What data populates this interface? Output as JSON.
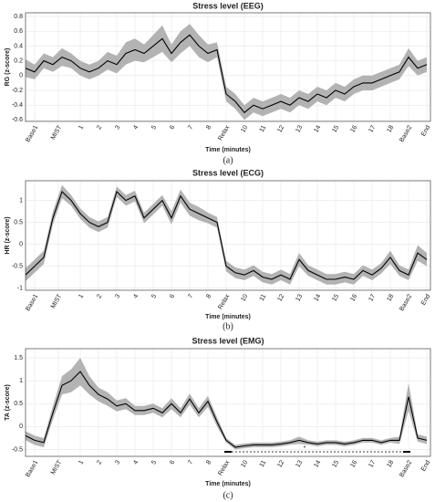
{
  "chart_data": [
    {
      "type": "line",
      "title": "Stress level (EEG)",
      "ylabel": "RG (z-score)",
      "xlabel": "Time (minutes)",
      "caption": "(a)",
      "xlim": [
        0,
        22.2
      ],
      "xticks": [
        {
          "value": 0.5,
          "label": "Base1"
        },
        {
          "value": 1.8,
          "label": "MIST"
        },
        {
          "value": 3,
          "label": "1"
        },
        {
          "value": 4,
          "label": "2"
        },
        {
          "value": 5,
          "label": "3"
        },
        {
          "value": 6,
          "label": "4"
        },
        {
          "value": 7,
          "label": "5"
        },
        {
          "value": 8,
          "label": "6"
        },
        {
          "value": 9,
          "label": "7"
        },
        {
          "value": 10,
          "label": "8"
        },
        {
          "value": 11,
          "label": "Relax"
        },
        {
          "value": 12,
          "label": "10"
        },
        {
          "value": 13,
          "label": "11"
        },
        {
          "value": 14,
          "label": "12"
        },
        {
          "value": 15,
          "label": "13"
        },
        {
          "value": 16,
          "label": "14"
        },
        {
          "value": 17,
          "label": "15"
        },
        {
          "value": 18,
          "label": "16"
        },
        {
          "value": 19,
          "label": "17"
        },
        {
          "value": 20,
          "label": "18"
        },
        {
          "value": 21,
          "label": "Base2"
        },
        {
          "value": 22,
          "label": "End"
        }
      ],
      "ylim": [
        -0.62,
        0.85
      ],
      "yticks": [
        -0.6,
        -0.4,
        -0.2,
        0,
        0.2,
        0.4,
        0.6,
        0.8
      ],
      "grid": true,
      "x": [
        0,
        0.5,
        1,
        1.5,
        2,
        2.5,
        3,
        3.5,
        4,
        4.5,
        5,
        5.5,
        6,
        6.5,
        7,
        7.5,
        8,
        8.5,
        9,
        9.5,
        10,
        10.5,
        11,
        11.5,
        12,
        12.5,
        13,
        13.5,
        14,
        14.5,
        15,
        15.5,
        16,
        16.5,
        17,
        17.5,
        18,
        18.5,
        19,
        19.5,
        20,
        20.5,
        21,
        21.5,
        22
      ],
      "series": [
        {
          "color": "#000000",
          "band_color": "#b3b3b3",
          "values": [
            0.1,
            0.05,
            0.2,
            0.15,
            0.25,
            0.2,
            0.1,
            0.05,
            0.1,
            0.2,
            0.15,
            0.3,
            0.35,
            0.3,
            0.4,
            0.5,
            0.3,
            0.45,
            0.55,
            0.4,
            0.3,
            0.35,
            -0.25,
            -0.35,
            -0.5,
            -0.4,
            -0.45,
            -0.4,
            -0.35,
            -0.4,
            -0.3,
            -0.35,
            -0.25,
            -0.3,
            -0.2,
            -0.25,
            -0.15,
            -0.1,
            -0.1,
            -0.05,
            0,
            0.05,
            0.25,
            0.1,
            0.15
          ],
          "err": [
            0.12,
            0.1,
            0.1,
            0.1,
            0.12,
            0.1,
            0.1,
            0.1,
            0.1,
            0.12,
            0.12,
            0.15,
            0.15,
            0.12,
            0.15,
            0.18,
            0.12,
            0.15,
            0.15,
            0.15,
            0.12,
            0.1,
            0.1,
            0.1,
            0.1,
            0.1,
            0.1,
            0.1,
            0.1,
            0.1,
            0.1,
            0.1,
            0.1,
            0.1,
            0.1,
            0.1,
            0.1,
            0.1,
            0.1,
            0.1,
            0.1,
            0.1,
            0.12,
            0.1,
            0.1
          ]
        }
      ]
    },
    {
      "type": "line",
      "title": "Stress level (ECG)",
      "ylabel": "HR (z-score)",
      "xlabel": "Time (minutes)",
      "caption": "(b)",
      "xlim": [
        0,
        22.2
      ],
      "xticks": [
        {
          "value": 0.5,
          "label": "Base1"
        },
        {
          "value": 1.8,
          "label": "MIST"
        },
        {
          "value": 3,
          "label": "1"
        },
        {
          "value": 4,
          "label": "2"
        },
        {
          "value": 5,
          "label": "3"
        },
        {
          "value": 6,
          "label": "4"
        },
        {
          "value": 7,
          "label": "5"
        },
        {
          "value": 8,
          "label": "6"
        },
        {
          "value": 9,
          "label": "7"
        },
        {
          "value": 10,
          "label": "8"
        },
        {
          "value": 11,
          "label": "Relax"
        },
        {
          "value": 12,
          "label": "10"
        },
        {
          "value": 13,
          "label": "11"
        },
        {
          "value": 14,
          "label": "12"
        },
        {
          "value": 15,
          "label": "13"
        },
        {
          "value": 16,
          "label": "14"
        },
        {
          "value": 17,
          "label": "15"
        },
        {
          "value": 18,
          "label": "16"
        },
        {
          "value": 19,
          "label": "17"
        },
        {
          "value": 20,
          "label": "18"
        },
        {
          "value": 21,
          "label": "Base2"
        },
        {
          "value": 22,
          "label": "End"
        }
      ],
      "ylim": [
        -1.05,
        1.45
      ],
      "yticks": [
        -1,
        -0.5,
        0,
        0.5,
        1
      ],
      "grid": true,
      "x": [
        0,
        0.5,
        1,
        1.5,
        2,
        2.5,
        3,
        3.5,
        4,
        4.5,
        5,
        5.5,
        6,
        6.5,
        7,
        7.5,
        8,
        8.5,
        9,
        9.5,
        10,
        10.5,
        11,
        11.5,
        12,
        12.5,
        13,
        13.5,
        14,
        14.5,
        15,
        15.5,
        16,
        16.5,
        17,
        17.5,
        18,
        18.5,
        19,
        19.5,
        20,
        20.5,
        21,
        21.5,
        22
      ],
      "series": [
        {
          "color": "#000000",
          "band_color": "#b3b3b3",
          "values": [
            -0.7,
            -0.5,
            -0.3,
            0.6,
            1.2,
            1.0,
            0.7,
            0.5,
            0.4,
            0.5,
            1.2,
            1.0,
            1.1,
            0.6,
            0.8,
            1.0,
            0.6,
            1.1,
            0.8,
            0.7,
            0.6,
            0.5,
            -0.5,
            -0.65,
            -0.7,
            -0.6,
            -0.75,
            -0.8,
            -0.7,
            -0.8,
            -0.35,
            -0.6,
            -0.7,
            -0.8,
            -0.8,
            -0.75,
            -0.8,
            -0.6,
            -0.7,
            -0.55,
            -0.3,
            -0.6,
            -0.7,
            -0.2,
            -0.35
          ],
          "err": [
            0.15,
            0.15,
            0.15,
            0.15,
            0.15,
            0.12,
            0.12,
            0.12,
            0.12,
            0.12,
            0.12,
            0.12,
            0.12,
            0.12,
            0.12,
            0.12,
            0.15,
            0.15,
            0.15,
            0.15,
            0.12,
            0.12,
            0.12,
            0.12,
            0.12,
            0.12,
            0.12,
            0.12,
            0.12,
            0.12,
            0.15,
            0.12,
            0.12,
            0.12,
            0.12,
            0.12,
            0.12,
            0.12,
            0.12,
            0.12,
            0.15,
            0.12,
            0.12,
            0.18,
            0.15
          ]
        }
      ]
    },
    {
      "type": "line",
      "title": "Stress level (EMG)",
      "ylabel": "TA (z-score)",
      "xlabel": "Time (minutes)",
      "caption": "(c)",
      "annotation": "*",
      "xlim": [
        0,
        22.2
      ],
      "xticks": [
        {
          "value": 0.5,
          "label": "Base1"
        },
        {
          "value": 1.8,
          "label": "MIST"
        },
        {
          "value": 3,
          "label": "1"
        },
        {
          "value": 4,
          "label": "2"
        },
        {
          "value": 5,
          "label": "3"
        },
        {
          "value": 6,
          "label": "4"
        },
        {
          "value": 7,
          "label": "5"
        },
        {
          "value": 8,
          "label": "6"
        },
        {
          "value": 9,
          "label": "7"
        },
        {
          "value": 10,
          "label": "8"
        },
        {
          "value": 11,
          "label": "Relax"
        },
        {
          "value": 12,
          "label": "10"
        },
        {
          "value": 13,
          "label": "11"
        },
        {
          "value": 14,
          "label": "12"
        },
        {
          "value": 15,
          "label": "13"
        },
        {
          "value": 16,
          "label": "14"
        },
        {
          "value": 17,
          "label": "15"
        },
        {
          "value": 18,
          "label": "16"
        },
        {
          "value": 19,
          "label": "17"
        },
        {
          "value": 20,
          "label": "18"
        },
        {
          "value": 21,
          "label": "Base2"
        },
        {
          "value": 22,
          "label": "End"
        }
      ],
      "ylim": [
        -0.65,
        1.7
      ],
      "yticks": [
        -0.5,
        0,
        0.5,
        1,
        1.5
      ],
      "grid": true,
      "x": [
        0,
        0.5,
        1,
        1.5,
        2,
        2.5,
        3,
        3.5,
        4,
        4.5,
        5,
        5.5,
        6,
        6.5,
        7,
        7.5,
        8,
        8.5,
        9,
        9.5,
        10,
        10.5,
        11,
        11.5,
        12,
        12.5,
        13,
        13.5,
        14,
        14.5,
        15,
        15.5,
        16,
        16.5,
        17,
        17.5,
        18,
        18.5,
        19,
        19.5,
        20,
        20.5,
        21,
        21.5,
        22
      ],
      "series": [
        {
          "color": "#000000",
          "band_color": "#b3b3b3",
          "values": [
            -0.2,
            -0.3,
            -0.35,
            0.3,
            0.9,
            1.0,
            1.2,
            0.9,
            0.7,
            0.6,
            0.45,
            0.5,
            0.35,
            0.35,
            0.4,
            0.3,
            0.5,
            0.3,
            0.6,
            0.3,
            0.55,
            0.1,
            -0.3,
            -0.45,
            -0.42,
            -0.4,
            -0.4,
            -0.4,
            -0.38,
            -0.35,
            -0.3,
            -0.35,
            -0.38,
            -0.35,
            -0.35,
            -0.38,
            -0.35,
            -0.3,
            -0.3,
            -0.35,
            -0.3,
            -0.3,
            0.65,
            -0.25,
            -0.3
          ],
          "err": [
            0.1,
            0.1,
            0.1,
            0.15,
            0.2,
            0.25,
            0.3,
            0.2,
            0.15,
            0.15,
            0.12,
            0.12,
            0.1,
            0.1,
            0.1,
            0.1,
            0.12,
            0.1,
            0.12,
            0.1,
            0.12,
            0.1,
            0.05,
            0.05,
            0.05,
            0.05,
            0.05,
            0.05,
            0.05,
            0.05,
            0.08,
            0.05,
            0.05,
            0.05,
            0.05,
            0.05,
            0.05,
            0.05,
            0.05,
            0.05,
            0.05,
            0.08,
            0.3,
            0.08,
            0.08
          ]
        }
      ]
    }
  ]
}
